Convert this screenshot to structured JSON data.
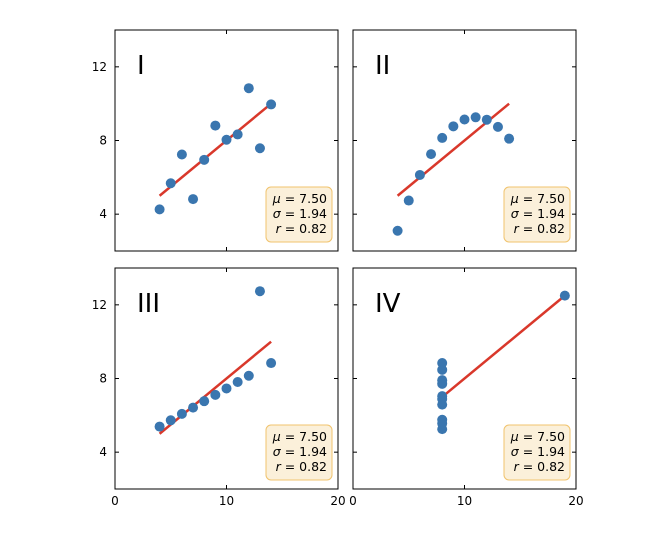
{
  "chart_data": [
    {
      "type": "scatter",
      "label": "I",
      "x": [
        10,
        8,
        13,
        9,
        11,
        14,
        6,
        4,
        12,
        7,
        5
      ],
      "y": [
        8.04,
        6.95,
        7.58,
        8.81,
        8.33,
        9.96,
        7.24,
        4.26,
        10.84,
        4.82,
        5.68
      ],
      "fit": {
        "intercept": 3.0,
        "slope": 0.5,
        "x_range": [
          4,
          14
        ]
      },
      "stats": {
        "mu": "7.50",
        "sigma": "1.94",
        "r": "0.82"
      },
      "xlim": [
        0,
        20
      ],
      "ylim": [
        2,
        14
      ],
      "xticks": [
        0,
        10,
        20
      ],
      "yticks": [
        4,
        8,
        12
      ]
    },
    {
      "type": "scatter",
      "label": "II",
      "x": [
        10,
        8,
        13,
        9,
        11,
        14,
        6,
        4,
        12,
        7,
        5
      ],
      "y": [
        9.14,
        8.14,
        8.74,
        8.77,
        9.26,
        8.1,
        6.13,
        3.1,
        9.13,
        7.26,
        4.74
      ],
      "fit": {
        "intercept": 3.0,
        "slope": 0.5,
        "x_range": [
          4,
          14
        ]
      },
      "stats": {
        "mu": "7.50",
        "sigma": "1.94",
        "r": "0.82"
      },
      "xlim": [
        0,
        20
      ],
      "ylim": [
        2,
        14
      ],
      "xticks": [
        0,
        10,
        20
      ],
      "yticks": [
        4,
        8,
        12
      ]
    },
    {
      "type": "scatter",
      "label": "III",
      "x": [
        10,
        8,
        13,
        9,
        11,
        14,
        6,
        4,
        12,
        7,
        5
      ],
      "y": [
        7.46,
        6.77,
        12.74,
        7.11,
        7.81,
        8.84,
        6.08,
        5.39,
        8.15,
        6.42,
        5.73
      ],
      "fit": {
        "intercept": 3.0,
        "slope": 0.5,
        "x_range": [
          4,
          14
        ]
      },
      "stats": {
        "mu": "7.50",
        "sigma": "1.94",
        "r": "0.82"
      },
      "xlim": [
        0,
        20
      ],
      "ylim": [
        2,
        14
      ],
      "xticks": [
        0,
        10,
        20
      ],
      "yticks": [
        4,
        8,
        12
      ]
    },
    {
      "type": "scatter",
      "label": "IV",
      "x": [
        8,
        8,
        8,
        8,
        8,
        8,
        8,
        19,
        8,
        8,
        8
      ],
      "y": [
        6.58,
        5.76,
        7.71,
        8.84,
        8.47,
        7.04,
        5.25,
        12.5,
        5.56,
        7.91,
        6.89
      ],
      "fit": {
        "intercept": 3.0,
        "slope": 0.5,
        "x_range": [
          8,
          19
        ]
      },
      "stats": {
        "mu": "7.50",
        "sigma": "1.94",
        "r": "0.82"
      },
      "xlim": [
        0,
        20
      ],
      "ylim": [
        2,
        14
      ],
      "xticks": [
        0,
        10,
        20
      ],
      "yticks": [
        4,
        8,
        12
      ]
    }
  ]
}
